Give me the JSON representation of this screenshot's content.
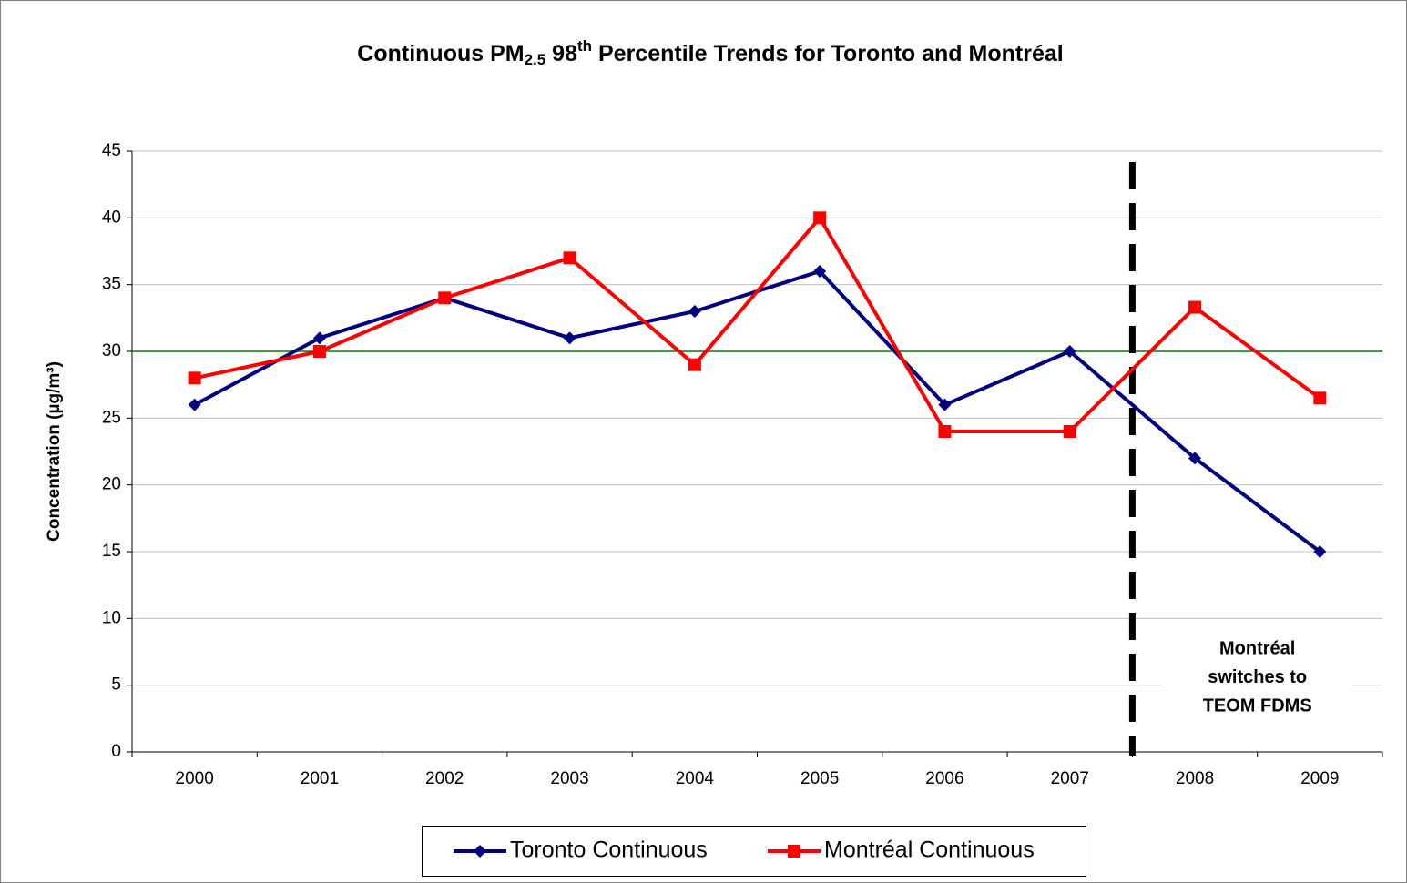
{
  "chart_data": {
    "type": "line",
    "title": [
      "Continuous PM",
      "2.5",
      " 98",
      "th",
      " Percentile Trends for Toronto and Montréal"
    ],
    "y_label": "Concentration (µg/m³)",
    "categories": [
      "2000",
      "2001",
      "2002",
      "2003",
      "2004",
      "2005",
      "2006",
      "2007",
      "2008",
      "2009"
    ],
    "series": [
      {
        "name": "Toronto Continuous",
        "color": "#000080",
        "marker": "diamond",
        "values": [
          26,
          31,
          34,
          31,
          33,
          36,
          26,
          30,
          22,
          15
        ]
      },
      {
        "name": "Montréal Continuous",
        "color": "#ff0000",
        "marker": "square",
        "values": [
          28,
          30,
          34,
          37,
          29,
          40,
          24,
          24,
          33.3,
          26.5
        ]
      }
    ],
    "ylim": [
      0,
      45
    ],
    "yticks": [
      0,
      5,
      10,
      15,
      20,
      25,
      30,
      35,
      40,
      45
    ],
    "grid": true,
    "reference_line": {
      "value": 30,
      "color": "#008000"
    },
    "divider_before": "2008",
    "annotation": [
      "Montréal",
      "switches to",
      "TEOM FDMS"
    ],
    "legend": "bottom"
  }
}
